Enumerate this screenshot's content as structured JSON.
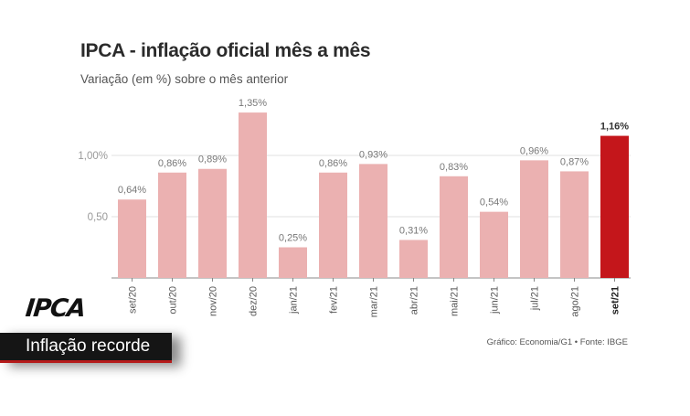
{
  "header": {
    "title": "IPCA - inflação oficial mês a mês",
    "subtitle": "Variação (em %) sobre o mês anterior"
  },
  "source": "Gráfico: Economia/G1 • Fonte: IBGE",
  "banner": {
    "title": "IPCA",
    "text": "Inflação recorde"
  },
  "colors": {
    "bar": "#ebb1b1",
    "highlight": "#c4161b",
    "label": "#777777",
    "axis": "#555555",
    "grid": "#e2e2e2"
  },
  "chart_data": {
    "type": "bar",
    "title": "IPCA - inflação oficial mês a mês",
    "subtitle": "Variação (em %) sobre o mês anterior",
    "categories": [
      "set/20",
      "out/20",
      "nov/20",
      "dez/20",
      "jan/21",
      "fev/21",
      "mar/21",
      "abr/21",
      "mai/21",
      "jun/21",
      "jul/21",
      "ago/21",
      "set/21"
    ],
    "values": [
      0.64,
      0.86,
      0.89,
      1.35,
      0.25,
      0.86,
      0.93,
      0.31,
      0.83,
      0.54,
      0.96,
      0.87,
      1.16
    ],
    "value_labels": [
      "0,64%",
      "0,86%",
      "0,89%",
      "1,35%",
      "0,25%",
      "0,86%",
      "0,93%",
      "0,31%",
      "0,83%",
      "0,54%",
      "0,96%",
      "0,87%",
      "1,16%"
    ],
    "highlight_category": "set/21",
    "y_ticks": [
      0.5,
      1.0
    ],
    "y_tick_labels": [
      "0,50",
      "1,00%"
    ],
    "ylim": [
      0,
      1.4
    ],
    "grid": true
  }
}
